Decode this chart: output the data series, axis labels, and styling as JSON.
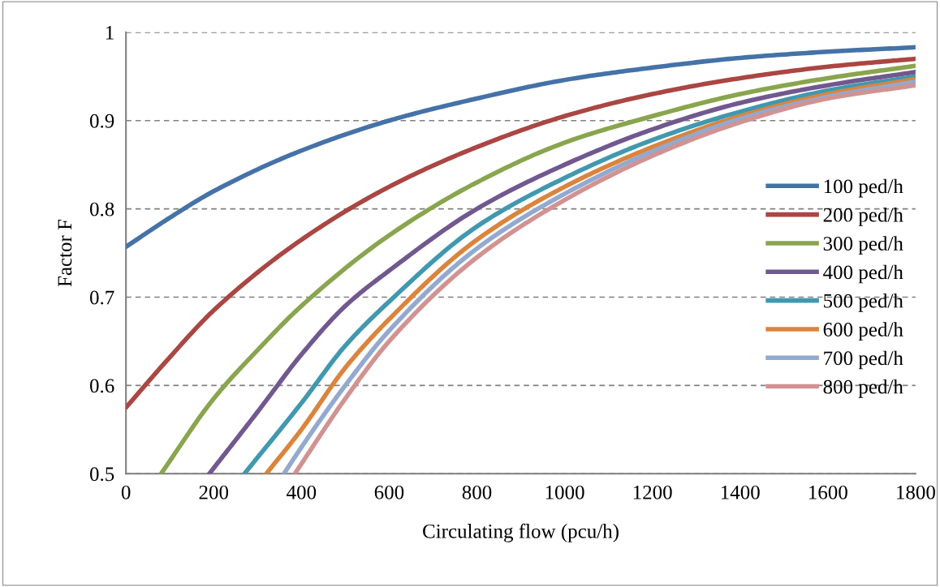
{
  "chart_data": {
    "type": "line",
    "xlabel": "Circulating flow (pcu/h)",
    "ylabel": "Factor F",
    "xlim": [
      0,
      1800
    ],
    "xticks": [
      0,
      200,
      400,
      600,
      800,
      1000,
      1200,
      1400,
      1600,
      1800
    ],
    "ylim": [
      0.5,
      1
    ],
    "yticks": [
      0.5,
      0.6,
      0.7,
      0.8,
      0.9,
      1
    ],
    "grid": "y",
    "legend": "right",
    "marker": "none",
    "line_style": "solid",
    "series": [
      {
        "name": "100 ped/h",
        "color": "#4572a7",
        "x": [
          0,
          100,
          200,
          400,
          600,
          800,
          1000,
          1200,
          1400,
          1600,
          1800
        ],
        "values": [
          0.757,
          0.79,
          0.82,
          0.866,
          0.9,
          0.925,
          0.946,
          0.96,
          0.971,
          0.978,
          0.983
        ]
      },
      {
        "name": "200 ped/h",
        "color": "#aa4643",
        "x": [
          0,
          100,
          200,
          400,
          600,
          800,
          1000,
          1200,
          1400,
          1600,
          1800
        ],
        "values": [
          0.575,
          0.632,
          0.685,
          0.765,
          0.825,
          0.87,
          0.905,
          0.93,
          0.948,
          0.961,
          0.97
        ]
      },
      {
        "name": "300 ped/h",
        "color": "#89a54e",
        "x": [
          80,
          200,
          300,
          400,
          600,
          800,
          1000,
          1200,
          1400,
          1600,
          1800
        ],
        "values": [
          0.5,
          0.585,
          0.64,
          0.69,
          0.77,
          0.83,
          0.875,
          0.905,
          0.93,
          0.948,
          0.962
        ]
      },
      {
        "name": "400 ped/h",
        "color": "#71588f",
        "x": [
          190,
          300,
          400,
          500,
          600,
          800,
          1000,
          1200,
          1400,
          1600,
          1800
        ],
        "values": [
          0.5,
          0.57,
          0.635,
          0.69,
          0.73,
          0.8,
          0.85,
          0.89,
          0.92,
          0.94,
          0.955
        ]
      },
      {
        "name": "500 ped/h",
        "color": "#4198af",
        "x": [
          270,
          400,
          500,
          600,
          800,
          1000,
          1200,
          1400,
          1600,
          1800
        ],
        "values": [
          0.5,
          0.58,
          0.645,
          0.695,
          0.78,
          0.835,
          0.878,
          0.91,
          0.934,
          0.95
        ]
      },
      {
        "name": "600 ped/h",
        "color": "#db843d",
        "x": [
          320,
          400,
          500,
          600,
          800,
          1000,
          1200,
          1400,
          1600,
          1800
        ],
        "values": [
          0.5,
          0.55,
          0.62,
          0.675,
          0.765,
          0.825,
          0.87,
          0.905,
          0.93,
          0.947
        ]
      },
      {
        "name": "700 ped/h",
        "color": "#93a9cf",
        "x": [
          360,
          400,
          500,
          600,
          800,
          1000,
          1200,
          1400,
          1600,
          1800
        ],
        "values": [
          0.5,
          0.53,
          0.6,
          0.662,
          0.755,
          0.817,
          0.865,
          0.902,
          0.927,
          0.944
        ]
      },
      {
        "name": "800 ped/h",
        "color": "#d19392",
        "x": [
          385,
          500,
          600,
          800,
          1000,
          1200,
          1400,
          1600,
          1800
        ],
        "values": [
          0.5,
          0.585,
          0.65,
          0.745,
          0.81,
          0.86,
          0.898,
          0.925,
          0.94
        ]
      }
    ]
  }
}
